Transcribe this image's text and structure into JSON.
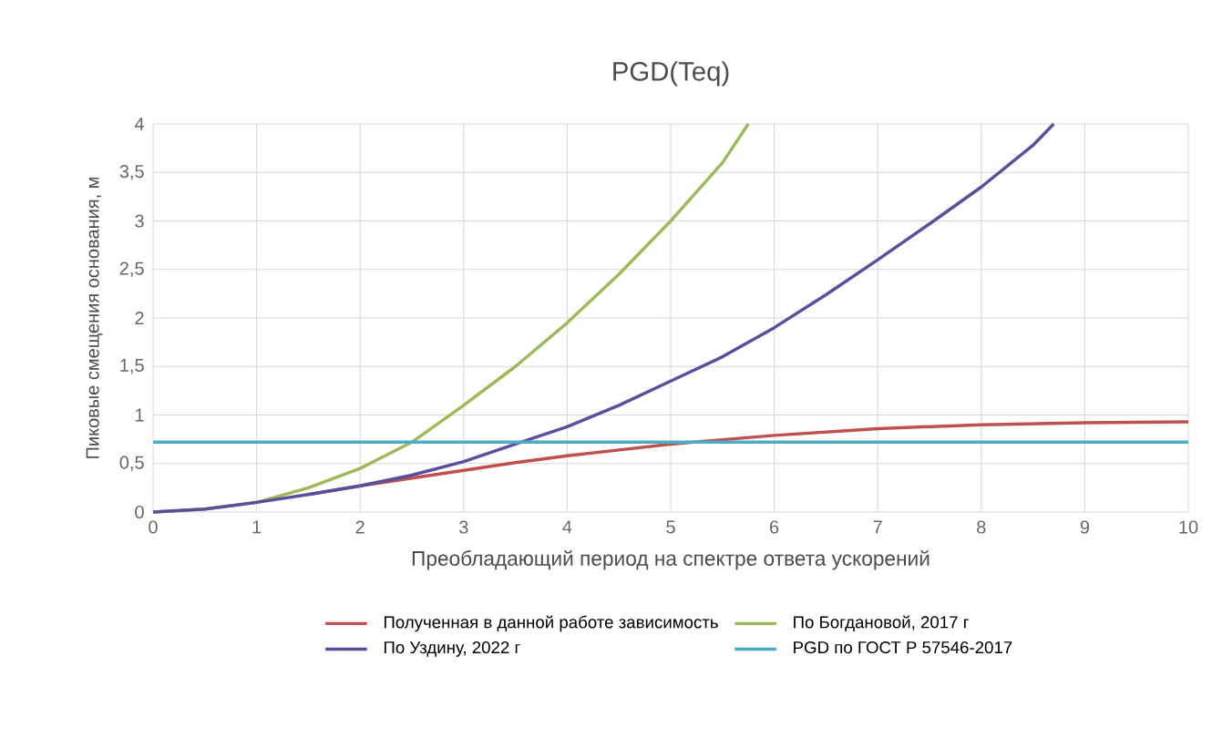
{
  "chart_data": {
    "type": "line",
    "title": "PGD(Teq)",
    "xlabel": "Преобладающий период на спектре ответа ускорений",
    "ylabel": "Пиковые смещения основания, м",
    "xlim": [
      0,
      10
    ],
    "ylim": [
      0,
      4
    ],
    "xticks": [
      0,
      1,
      2,
      3,
      4,
      5,
      6,
      7,
      8,
      9,
      10
    ],
    "yticks": [
      0,
      {
        "value": 0.5,
        "label": "0,5"
      },
      1,
      {
        "value": 1.5,
        "label": "1,5"
      },
      2,
      {
        "value": 2.5,
        "label": "2,5"
      },
      3,
      {
        "value": 3.5,
        "label": "3,5"
      },
      4
    ],
    "grid": true,
    "legend": "bottom",
    "marker": "none",
    "line_style": "solid",
    "series": [
      {
        "name": "Полученная в данной работе зависимость",
        "color": "#c0504d",
        "x": [
          1.5,
          2,
          2.5,
          3,
          3.5,
          4,
          4.5,
          5,
          6,
          7,
          8,
          9,
          10
        ],
        "values": [
          0.18,
          0.27,
          0.35,
          0.43,
          0.51,
          0.58,
          0.64,
          0.7,
          0.79,
          0.86,
          0.9,
          0.92,
          0.93
        ]
      },
      {
        "name": "По Богдановой, 2017 г",
        "color": "#9bbb59",
        "x": [
          0,
          0.5,
          1,
          1.5,
          2,
          2.5,
          3,
          3.5,
          4,
          4.5,
          5,
          5.5,
          5.75
        ],
        "values": [
          0,
          0.03,
          0.1,
          0.25,
          0.45,
          0.72,
          1.1,
          1.5,
          1.95,
          2.45,
          3.0,
          3.6,
          4.0
        ]
      },
      {
        "name": "По Уздину, 2022 г",
        "color": "#5a4f9c",
        "x": [
          0,
          0.5,
          1,
          1.5,
          2,
          2.5,
          3,
          3.5,
          4,
          4.5,
          5,
          5.5,
          6,
          6.5,
          7,
          7.5,
          8,
          8.5,
          8.7
        ],
        "values": [
          0,
          0.03,
          0.1,
          0.18,
          0.27,
          0.38,
          0.52,
          0.7,
          0.88,
          1.1,
          1.35,
          1.6,
          1.9,
          2.24,
          2.6,
          2.97,
          3.35,
          3.78,
          4.0
        ]
      },
      {
        "name": "PGD по ГОСТ Р 57546-2017",
        "color": "#4bacc6",
        "x": [
          0,
          10
        ],
        "values": [
          0.72,
          0.72
        ]
      }
    ]
  }
}
